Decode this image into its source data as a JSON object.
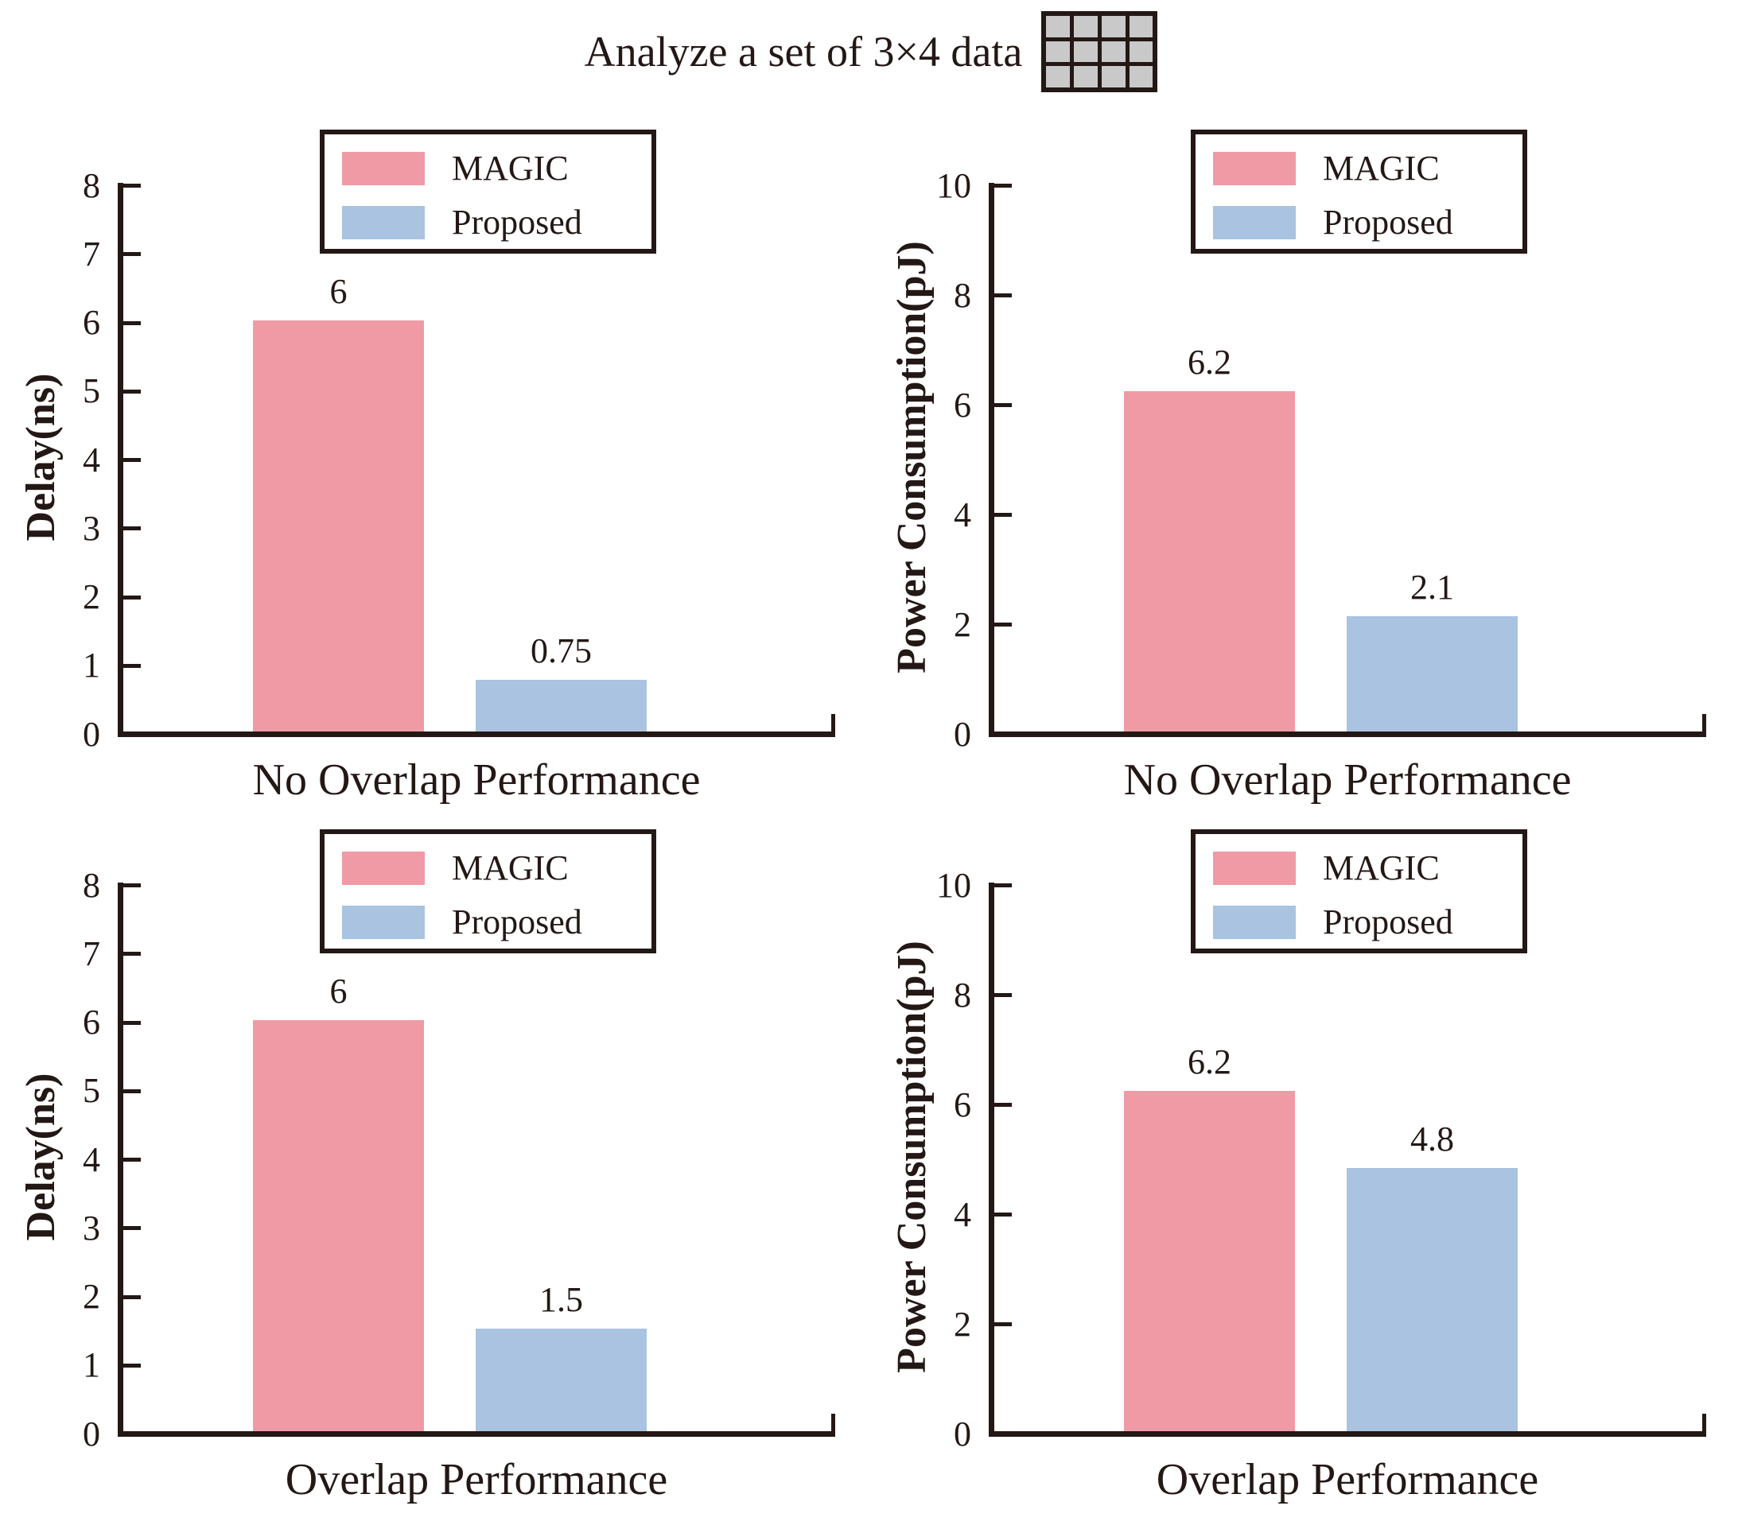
{
  "title": {
    "text": "Analyze a set of 3×4 data",
    "icon": {
      "name": "data-grid-icon",
      "rows": 3,
      "cols": 4,
      "cell_fill": "#C9C9C9",
      "line_color": "#231815"
    }
  },
  "colors": {
    "magic": "#F09AA6",
    "proposed": "#A9C3E1",
    "axis": "#231815",
    "text": "#231815",
    "background": "#FFFFFF"
  },
  "legend": {
    "entries": [
      {
        "label": "MAGIC",
        "color": "#F09AA6"
      },
      {
        "label": "Proposed",
        "color": "#A9C3E1"
      }
    ],
    "position": "upper center"
  },
  "chart_data": [
    {
      "id": "delay-no-overlap",
      "type": "bar",
      "title": "",
      "xlabel": "No Overlap Performance",
      "ylabel": "Delay(ns)",
      "ylim": [
        0,
        8
      ],
      "yticks": [
        0,
        1,
        2,
        3,
        4,
        5,
        6,
        7,
        8
      ],
      "categories": [
        "MAGIC",
        "Proposed"
      ],
      "values": [
        6,
        0.75
      ],
      "value_labels": [
        "6",
        "0.75"
      ],
      "series_colors": [
        "#F09AA6",
        "#A9C3E1"
      ],
      "grid": false,
      "legend_position": "upper center"
    },
    {
      "id": "power-no-overlap",
      "type": "bar",
      "title": "",
      "xlabel": "No Overlap Performance",
      "ylabel": "Power Consumption(pJ)",
      "ylim": [
        0,
        10
      ],
      "yticks": [
        0,
        2,
        4,
        6,
        8,
        10
      ],
      "categories": [
        "MAGIC",
        "Proposed"
      ],
      "values": [
        6.2,
        2.1
      ],
      "value_labels": [
        "6.2",
        "2.1"
      ],
      "series_colors": [
        "#F09AA6",
        "#A9C3E1"
      ],
      "grid": false,
      "legend_position": "upper center"
    },
    {
      "id": "delay-overlap",
      "type": "bar",
      "title": "",
      "xlabel": "Overlap Performance",
      "ylabel": "Delay(ns)",
      "ylim": [
        0,
        8
      ],
      "yticks": [
        0,
        1,
        2,
        3,
        4,
        5,
        6,
        7,
        8
      ],
      "categories": [
        "MAGIC",
        "Proposed"
      ],
      "values": [
        6,
        1.5
      ],
      "value_labels": [
        "6",
        "1.5"
      ],
      "series_colors": [
        "#F09AA6",
        "#A9C3E1"
      ],
      "grid": false,
      "legend_position": "upper center"
    },
    {
      "id": "power-overlap",
      "type": "bar",
      "title": "",
      "xlabel": "Overlap Performance",
      "ylabel": "Power Consumption(pJ)",
      "ylim": [
        0,
        10
      ],
      "yticks": [
        0,
        2,
        4,
        6,
        8,
        10
      ],
      "categories": [
        "MAGIC",
        "Proposed"
      ],
      "values": [
        6.2,
        4.8
      ],
      "value_labels": [
        "6.2",
        "4.8"
      ],
      "series_colors": [
        "#F09AA6",
        "#A9C3E1"
      ],
      "grid": false,
      "legend_position": "upper center"
    }
  ]
}
